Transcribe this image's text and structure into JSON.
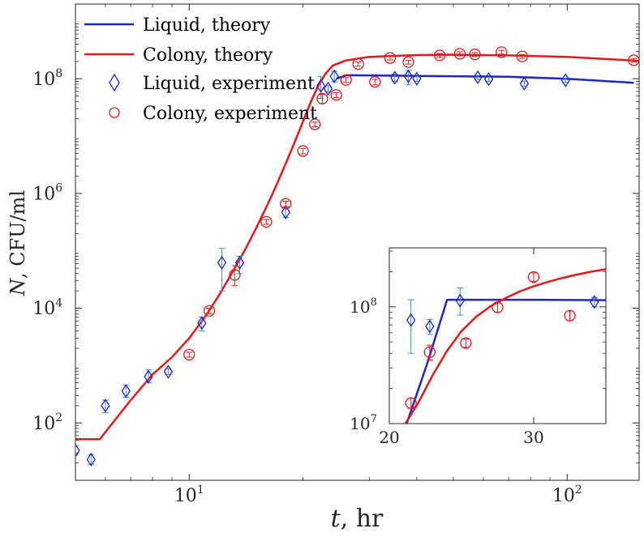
{
  "chart_data": [
    {
      "type": "scatter",
      "name": "main",
      "xscale": "log",
      "yscale": "log",
      "xlabel": {
        "symbol": "t",
        "unit": ", hr"
      },
      "ylabel": {
        "symbol": "N",
        "unit": ", CFU/ml"
      },
      "xlim": [
        5,
        155
      ],
      "ylim": [
        10,
        2000000000
      ],
      "x_ticks": [
        {
          "value": 10,
          "base": "10",
          "exp": "1"
        },
        {
          "value": 100,
          "base": "10",
          "exp": "2"
        }
      ],
      "y_ticks": [
        {
          "value": 100,
          "base": "10",
          "exp": "2"
        },
        {
          "value": 10000,
          "base": "10",
          "exp": "4"
        },
        {
          "value": 1000000,
          "base": "10",
          "exp": "6"
        },
        {
          "value": 100000000,
          "base": "10",
          "exp": "8"
        }
      ],
      "legend": {
        "position": "top-left",
        "entries": [
          {
            "label": "Liquid, theory",
            "color": "#1f25c8",
            "kind": "line"
          },
          {
            "label": "Colony, theory",
            "color": "#e31a1c",
            "kind": "line"
          },
          {
            "label": "Liquid, experiment",
            "color": "#1f25c8",
            "kind": "diamond"
          },
          {
            "label": "Colony, experiment",
            "color": "#e31a1c",
            "kind": "circle"
          }
        ]
      },
      "series": [
        {
          "name": "Liquid, theory",
          "kind": "line",
          "color": "#1f25c8",
          "points": [
            [
              24.5,
              100000000
            ],
            [
              26.0,
              115000000
            ],
            [
              40,
              112000000
            ],
            [
              70,
              108000000
            ],
            [
              100,
              100000000
            ],
            [
              150,
              85000000
            ]
          ]
        },
        {
          "name": "Colony, theory",
          "kind": "line",
          "color": "#e31a1c",
          "points": [
            [
              5,
              52
            ],
            [
              5.8,
              52
            ],
            [
              7,
              250
            ],
            [
              8,
              700
            ],
            [
              9,
              1400
            ],
            [
              10,
              3000
            ],
            [
              11,
              7000
            ],
            [
              12,
              17000
            ],
            [
              13,
              42000
            ],
            [
              14,
              100000
            ],
            [
              15,
              240000
            ],
            [
              16,
              580000
            ],
            [
              17,
              1380000
            ],
            [
              18,
              3300000
            ],
            [
              19,
              7800000
            ],
            [
              20,
              18000000
            ],
            [
              21,
              40000000
            ],
            [
              22,
              78000000
            ],
            [
              23,
              125000000
            ],
            [
              24,
              170000000
            ],
            [
              26,
              208000000
            ],
            [
              30,
              240000000
            ],
            [
              40,
              258000000
            ],
            [
              50,
              262000000
            ],
            [
              70,
              255000000
            ],
            [
              100,
              240000000
            ],
            [
              155,
              205000000
            ]
          ]
        },
        {
          "name": "Liquid, experiment",
          "kind": "diamond",
          "color": "#1f25c8",
          "points": [
            [
              5.0,
              33,
              28,
              40
            ],
            [
              5.5,
              23,
              19,
              28
            ],
            [
              6.0,
              200,
              150,
              250
            ],
            [
              6.8,
              360,
              280,
              460
            ],
            [
              7.8,
              640,
              500,
              850
            ],
            [
              8.8,
              780,
              700,
              880
            ],
            [
              10.8,
              5500,
              4000,
              7000
            ],
            [
              12.2,
              62000,
              20000,
              110000
            ],
            [
              13.6,
              62000,
              40000,
              80000
            ],
            [
              18.0,
              470000,
              380000,
              570000
            ],
            [
              22.3,
              75000000,
              45000000,
              110000000
            ],
            [
              23.3,
              67000000,
              59000000,
              75000000
            ],
            [
              24.2,
              110000000,
              88000000,
              135000000
            ],
            [
              35,
              104000000,
              90000000,
              120000000
            ],
            [
              38,
              110000000,
              78000000,
              140000000
            ],
            [
              40,
              100000000,
              90000000,
              110000000
            ],
            [
              58,
              106000000,
              98000000,
              114000000
            ],
            [
              62,
              98000000,
              90000000,
              106000000
            ],
            [
              77,
              82000000,
              74000000,
              90000000
            ],
            [
              99,
              94000000,
              86000000,
              102000000
            ]
          ]
        },
        {
          "name": "Colony, experiment",
          "kind": "circle",
          "color": "#e31a1c",
          "points": [
            [
              10.0,
              1550,
              1400,
              1700
            ],
            [
              11.3,
              9000,
              8000,
              10000
            ],
            [
              13.2,
              38000,
              25000,
              55000
            ],
            [
              16.0,
              320000,
              290000,
              350000
            ],
            [
              18.0,
              660000,
              590000,
              730000
            ],
            [
              20.0,
              5500000,
              4900000,
              6100000
            ],
            [
              21.5,
              16000000,
              14500000,
              17500000
            ],
            [
              22.5,
              45000000,
              37000000,
              53000000
            ],
            [
              24.5,
              52000000,
              47000000,
              57000000
            ],
            [
              26,
              95000000,
              86000000,
              104000000
            ],
            [
              28,
              180000000,
              165000000,
              195000000
            ],
            [
              31,
              88000000,
              78000000,
              98000000
            ],
            [
              34,
              230000000,
              212000000,
              248000000
            ],
            [
              38,
              195000000,
              180000000,
              210000000
            ],
            [
              46,
              255000000,
              235000000,
              275000000
            ],
            [
              52,
              272000000,
              250000000,
              294000000
            ],
            [
              57,
              265000000,
              245000000,
              285000000
            ],
            [
              67,
              290000000,
              268000000,
              312000000
            ],
            [
              76,
              245000000,
              226000000,
              264000000
            ],
            [
              150,
              210000000,
              194000000,
              226000000
            ]
          ]
        }
      ]
    },
    {
      "type": "scatter",
      "name": "inset",
      "xscale": "linear",
      "yscale": "log",
      "xlim": [
        20,
        35
      ],
      "ylim": [
        10000000,
        320000000
      ],
      "x_ticks": [
        {
          "value": 20,
          "label": "20"
        },
        {
          "value": 30,
          "label": "30"
        }
      ],
      "y_ticks": [
        {
          "value": 10000000,
          "base": "10",
          "exp": "7"
        },
        {
          "value": 100000000,
          "base": "10",
          "exp": "8"
        }
      ],
      "series": [
        {
          "name": "Liquid, theory",
          "kind": "line",
          "color": "#1f25c8",
          "points": [
            [
              21.2,
              10000000
            ],
            [
              22.7,
              35000000
            ],
            [
              24.0,
              115000000
            ],
            [
              30.0,
              115000000
            ],
            [
              35.0,
              114000000
            ]
          ]
        },
        {
          "name": "Colony, theory",
          "kind": "line",
          "color": "#e31a1c",
          "points": [
            [
              21.0,
              9500000
            ],
            [
              22.0,
              15000000
            ],
            [
              23.0,
              26000000
            ],
            [
              24.0,
              42000000
            ],
            [
              25.0,
              62000000
            ],
            [
              26.0,
              82000000
            ],
            [
              27.0,
              101000000
            ],
            [
              28.0,
              118000000
            ],
            [
              29.0,
              135000000
            ],
            [
              30.0,
              150000000
            ],
            [
              31.0,
              164000000
            ],
            [
              32.0,
              177000000
            ],
            [
              33.0,
              189000000
            ],
            [
              34.0,
              200000000
            ],
            [
              35.0,
              210000000
            ]
          ]
        },
        {
          "name": "Liquid, experiment",
          "kind": "diamond",
          "color": "#1f25c8",
          "points": [
            [
              21.5,
              77000000,
              40000000,
              115000000
            ],
            [
              22.8,
              68000000,
              58000000,
              78000000
            ],
            [
              24.9,
              113000000,
              85000000,
              145000000
            ],
            [
              34.2,
              110000000,
              100000000,
              120000000
            ]
          ]
        },
        {
          "name": "Colony, experiment",
          "kind": "circle",
          "color": "#e31a1c",
          "points": [
            [
              21.5,
              15000000,
              13500000,
              16500000
            ],
            [
              22.8,
              41000000,
              35000000,
              47000000
            ],
            [
              25.3,
              49000000,
              45000000,
              53000000
            ],
            [
              27.5,
              99000000,
              90000000,
              108000000
            ],
            [
              30.0,
              180000000,
              165000000,
              195000000
            ],
            [
              32.5,
              84000000,
              76000000,
              92000000
            ]
          ]
        }
      ]
    }
  ]
}
